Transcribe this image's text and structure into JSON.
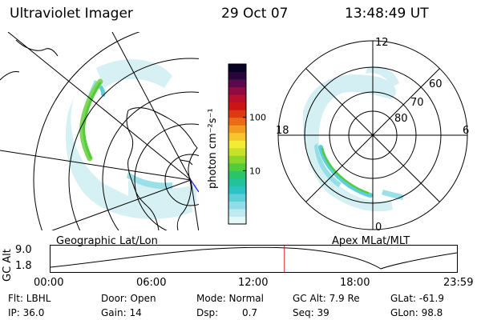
{
  "header": {
    "title": "Ultraviolet Imager",
    "date": "29 Oct 07",
    "time": "13:48:49 UT"
  },
  "left_panel": {
    "caption": "Geographic Lat/Lon"
  },
  "right_panel": {
    "caption": "Apex MLat/MLT",
    "mlt_labels": {
      "top": "12",
      "left": "18",
      "right": "6",
      "bottom": "0"
    },
    "lat_labels": [
      "60",
      "70",
      "80"
    ]
  },
  "colorbar": {
    "unit_label": "photon cm⁻²s⁻¹",
    "ticks": [
      {
        "label": "100",
        "value": 100
      },
      {
        "label": "10",
        "value": 10
      }
    ],
    "colors": [
      "#e6f7f8",
      "#bfe9ee",
      "#8fdde6",
      "#5ccfd9",
      "#2ec2c4",
      "#22c39a",
      "#2ac56a",
      "#52cc3a",
      "#8ed629",
      "#c8e22a",
      "#f2ec34",
      "#f6c52c",
      "#f39a20",
      "#ea6a16",
      "#dc3a10",
      "#cc1414",
      "#b8102c",
      "#8e0c40",
      "#5a0a4a",
      "#28063c",
      "#0a0224"
    ]
  },
  "timeline": {
    "axis_label": "GC Alt",
    "y_ticks": [
      "9.0",
      "1.8"
    ],
    "x_ticks": [
      "00:00",
      "06:00",
      "12:00",
      "18:00",
      "23:59"
    ],
    "current_time_hours": 13.81,
    "marker_color": "#cc2222"
  },
  "info": {
    "flt": "Flt: LBHL",
    "ip": "IP: 36.0",
    "door": "Door: Open",
    "gain": "Gain: 14",
    "mode": "Mode: Normal",
    "dsp": "Dsp:",
    "dsp_value": "0.7",
    "gc_alt": "GC Alt: 7.9 Re",
    "seq": "Seq: 39",
    "glat": "GLat: -61.9",
    "glon": "GLon: 98.8"
  }
}
